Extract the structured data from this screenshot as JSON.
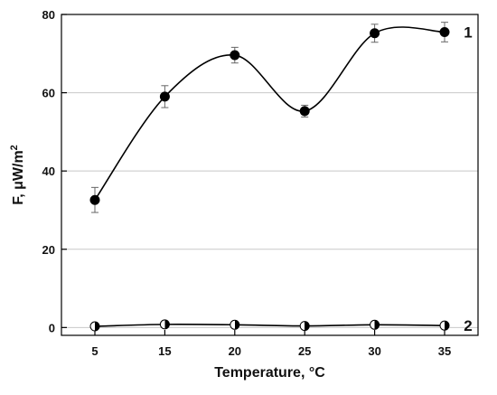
{
  "chart_data": {
    "type": "line",
    "xlabel": "Temperature, °C",
    "ylabel": "F, μW/m",
    "ylabel_sup": "2",
    "x": [
      5,
      15,
      20,
      25,
      30,
      35
    ],
    "x_ticks": [
      "5",
      "15",
      "20",
      "25",
      "30",
      "35"
    ],
    "y_ticks": [
      "0",
      "20",
      "40",
      "60",
      "80"
    ],
    "ylim": [
      -2,
      80
    ],
    "grid": "horizontal",
    "series": [
      {
        "name": "1",
        "marker": "filled-circle",
        "values": [
          32.6,
          59.0,
          69.6,
          55.3,
          75.2,
          75.5
        ],
        "errors": [
          3.2,
          2.8,
          2.0,
          1.5,
          2.3,
          2.5
        ]
      },
      {
        "name": "2",
        "marker": "half-filled-circle",
        "values": [
          0.3,
          0.8,
          0.7,
          0.4,
          0.7,
          0.5
        ],
        "errors": [
          0,
          0,
          0,
          0,
          0,
          0
        ]
      }
    ],
    "colors": {
      "line": "#000000",
      "grid": "#c8c8c8",
      "errorbar": "#666666"
    }
  }
}
